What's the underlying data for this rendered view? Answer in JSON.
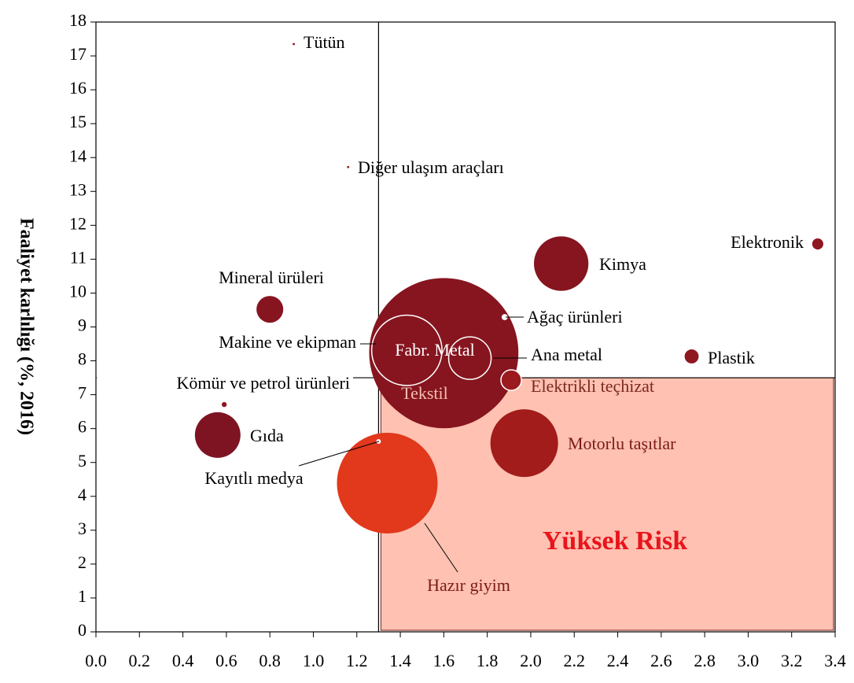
{
  "chart_data": {
    "type": "bubble",
    "y_label": "Faaliyet karlılığı (%, 2016)",
    "xlim": [
      0,
      3.4
    ],
    "ylim": [
      0,
      18
    ],
    "xticks": [
      {
        "value": 0,
        "label": "0.0"
      },
      0.2,
      0.4,
      0.6,
      0.8,
      {
        "value": 1,
        "label": "1.0"
      },
      1.2,
      1.4,
      1.6,
      1.8,
      {
        "value": 2,
        "label": "2.0"
      },
      2.2,
      2.4,
      2.6,
      2.8,
      {
        "value": 3,
        "label": "3.0"
      },
      3.2,
      3.4
    ],
    "yticks": [
      0,
      1,
      2,
      3,
      4,
      5,
      6,
      7,
      8,
      9,
      10,
      11,
      12,
      13,
      14,
      15,
      16,
      17,
      18
    ],
    "risk_region": {
      "x": 1.3,
      "y": 7.5,
      "label": "Yüksek Risk",
      "color": "#ffc1b1",
      "label_color": "#e8141c"
    },
    "points": [
      {
        "name": "Tekstil",
        "x": 1.6,
        "y": 8.1,
        "size": 81,
        "color": "#86151f"
      },
      {
        "name": "Fabr. Metal",
        "x": 1.6,
        "y": 8.24,
        "size": 90,
        "color": "#86151f"
      },
      {
        "name": "Hazır giyim",
        "x": 1.34,
        "y": 4.39,
        "size": 41,
        "color": "#e2381c"
      },
      {
        "name": "Kimya",
        "x": 2.14,
        "y": 10.87,
        "size": 12,
        "color": "#86151f"
      },
      {
        "name": "Motorlu taşıtlar",
        "x": 1.97,
        "y": 5.57,
        "size": 18.5,
        "color": "#a11c1b"
      },
      {
        "name": "Gıda",
        "x": 0.56,
        "y": 5.81,
        "size": 8.4,
        "color": "#7e1422"
      },
      {
        "name": "Mineral ürüleri",
        "x": 0.8,
        "y": 9.52,
        "size": 2.9,
        "color": "#86151f"
      },
      {
        "name": "Makine ve ekipman",
        "x": 1.43,
        "y": 8.31,
        "size": 20,
        "color": "#86151f"
      },
      {
        "name": "Ana metal",
        "x": 1.72,
        "y": 8.08,
        "size": 7.3,
        "color": "#86151f"
      },
      {
        "name": "Elektrikli teçhizat",
        "x": 1.91,
        "y": 7.43,
        "size": 1.7,
        "color": "#9b1a1e"
      },
      {
        "name": "Plastik",
        "x": 2.74,
        "y": 8.13,
        "size": 0.8,
        "color": "#8f1720"
      },
      {
        "name": "Elektronik",
        "x": 3.32,
        "y": 11.45,
        "size": 0.5,
        "color": "#8f1720"
      },
      {
        "name": "Ağaç ürünleri",
        "x": 1.88,
        "y": 9.29,
        "size": 0.1,
        "color": "#ffffff"
      },
      {
        "name": "Kömür ve petrol ürünleri",
        "x": 0.59,
        "y": 6.71,
        "size": 0.1,
        "color": "#8f1720"
      },
      {
        "name": "Kayıtlı medya",
        "x": 1.3,
        "y": 5.62,
        "size": 0.05,
        "color": "#ffffff"
      },
      {
        "name": "Tütün",
        "x": 0.91,
        "y": 17.35,
        "size": 0.02,
        "color": "#8f1720"
      },
      {
        "name": "Diğer ulaşım araçları",
        "x": 1.16,
        "y": 13.72,
        "size": 0.02,
        "color": "#8f1720"
      }
    ]
  }
}
